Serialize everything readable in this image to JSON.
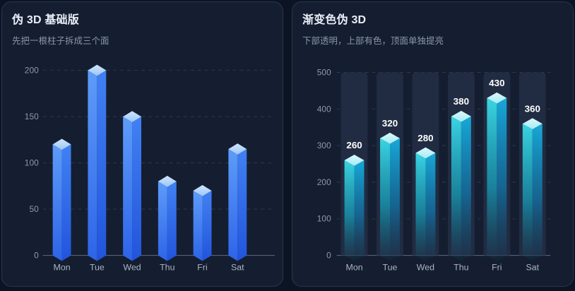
{
  "theme": {
    "page_bg": "#0c1424",
    "panel_bg": "#141e30",
    "panel_border": "#273650",
    "title_color": "#e9eef7",
    "subtitle_color": "#8b96aa",
    "grid_color": "#2d394f",
    "axis_color": "#5f6a82",
    "ytick_color": "#8d98ab",
    "xtick_color": "#aab4c4",
    "value_label_color": "#ffffff",
    "track_color": "#212c42"
  },
  "panels": [
    {
      "title": "伪 3D 基础版",
      "subtitle": "先把一根柱子拆成三个面",
      "chart_data": {
        "type": "bar",
        "variant": "pseudo-3d-column",
        "title": "伪 3D 基础版",
        "categories": [
          "Mon",
          "Tue",
          "Wed",
          "Thu",
          "Fri",
          "Sat"
        ],
        "values": [
          120,
          200,
          150,
          80,
          70,
          115
        ],
        "xlabel": "",
        "ylabel": "",
        "ylim": [
          0,
          200
        ],
        "yticks": [
          0,
          50,
          100,
          150,
          200
        ],
        "grid": "horizontal-dashed",
        "legend": "none",
        "show_value_labels": false,
        "track": false,
        "colors": {
          "face_left": [
            [
              "0%",
              "#5e9cf9",
              1
            ],
            [
              "100%",
              "#2d64e8",
              1
            ]
          ],
          "face_right": [
            [
              "0%",
              "#4181f3",
              1
            ],
            [
              "100%",
              "#2254dc",
              1
            ]
          ],
          "face_top": [
            [
              "0%",
              "#d0e5fe",
              1
            ],
            [
              "100%",
              "#9cc5f9",
              1
            ]
          ]
        }
      }
    },
    {
      "title": "渐变色伪 3D",
      "subtitle": "下部透明，上部有色，顶面单独提亮",
      "chart_data": {
        "type": "bar",
        "variant": "pseudo-3d-gradient-column",
        "title": "渐变色伪 3D",
        "categories": [
          "Mon",
          "Tue",
          "Wed",
          "Thu",
          "Fri",
          "Sat"
        ],
        "values": [
          260,
          320,
          280,
          380,
          430,
          360
        ],
        "xlabel": "",
        "ylabel": "",
        "ylim": [
          0,
          500
        ],
        "yticks": [
          0,
          100,
          200,
          300,
          400,
          500
        ],
        "grid": "horizontal-dashed",
        "legend": "none",
        "show_value_labels": true,
        "track": true,
        "colors": {
          "face_left": [
            [
              "0%",
              "#3bd8e6",
              0.98
            ],
            [
              "55%",
              "#17a3be",
              0.72
            ],
            [
              "100%",
              "#0e7f9e",
              0.05
            ]
          ],
          "face_right": [
            [
              "0%",
              "#17abdb",
              0.98
            ],
            [
              "55%",
              "#0f86c0",
              0.62
            ],
            [
              "100%",
              "#0b6c9b",
              0.05
            ]
          ],
          "face_top": [
            [
              "0%",
              "#dbf8fc",
              1
            ],
            [
              "100%",
              "#a3ecf6",
              1
            ]
          ]
        }
      }
    }
  ]
}
